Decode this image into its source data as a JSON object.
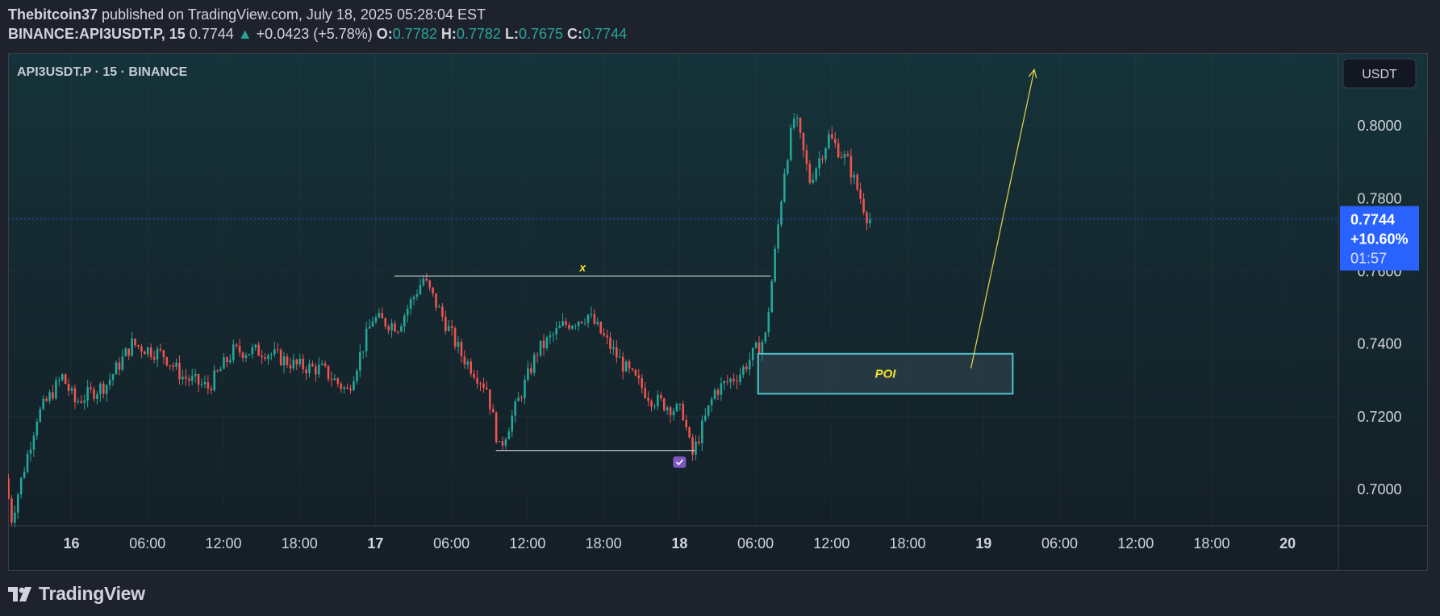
{
  "header": {
    "author": "Thebitcoin37",
    "published": "published on TradingView.com, July 18, 2025 05:28:04 EST",
    "symbol": "BINANCE:API3USDT.P, 15",
    "last": "0.7744",
    "change_arrow": "▲",
    "change": "+0.0423 (+5.78%)",
    "o_label": "O:",
    "o": "0.7782",
    "h_label": "H:",
    "h": "0.7782",
    "l_label": "L:",
    "l": "0.7675",
    "c_label": "C:",
    "c": "0.7744"
  },
  "footer": {
    "brand": "TradingView",
    "logo_icon": "tradingview-logo-icon"
  },
  "colors": {
    "up": "#26a69a",
    "down": "#ef5350",
    "price_badge": "#2962ff",
    "poi": "#4fc3c9",
    "annotation_text": "#f5e130",
    "arrow": "#e8d84a",
    "level_line": "#d1d4dc"
  },
  "chart_data": {
    "type": "candlestick",
    "legend": "API3USDT.P · 15 · BINANCE",
    "currency": "USDT",
    "ylim": [
      0.69,
      0.82
    ],
    "y_ticks": [
      "0.8000",
      "0.7800",
      "0.7600",
      "0.7400",
      "0.7200",
      "0.7000"
    ],
    "y_tick_values": [
      0.8,
      0.78,
      0.76,
      0.74,
      0.72,
      0.7
    ],
    "x_ticks": [
      "16",
      "06:00",
      "12:00",
      "18:00",
      "17",
      "06:00",
      "12:00",
      "18:00",
      "18",
      "06:00",
      "12:00",
      "18:00",
      "19",
      "06:00",
      "12:00",
      "18:00",
      "20"
    ],
    "x_tick_hours": [
      0,
      6,
      12,
      18,
      24,
      30,
      36,
      42,
      48,
      54,
      60,
      66,
      72,
      78,
      84,
      90,
      96
    ],
    "x_range_hours": [
      -5,
      100
    ],
    "last_bar_hour": 63.1,
    "price_badge": {
      "price": "0.7744",
      "value": 0.7744,
      "change": "+10.60%",
      "countdown": "01:57"
    },
    "key_points": [
      {
        "t": -5,
        "p": 0.703
      },
      {
        "t": -4.5,
        "p": 0.692
      },
      {
        "t": -2.5,
        "p": 0.72
      },
      {
        "t": -0.5,
        "p": 0.731
      },
      {
        "t": 0.5,
        "p": 0.724
      },
      {
        "t": 3,
        "p": 0.729
      },
      {
        "t": 5,
        "p": 0.74
      },
      {
        "t": 7.5,
        "p": 0.737
      },
      {
        "t": 9,
        "p": 0.731
      },
      {
        "t": 11,
        "p": 0.728
      },
      {
        "t": 13,
        "p": 0.738
      },
      {
        "t": 15.5,
        "p": 0.738
      },
      {
        "t": 18,
        "p": 0.734
      },
      {
        "t": 20,
        "p": 0.733
      },
      {
        "t": 22,
        "p": 0.727
      },
      {
        "t": 24,
        "p": 0.747
      },
      {
        "t": 26,
        "p": 0.745
      },
      {
        "t": 28,
        "p": 0.758
      },
      {
        "t": 31,
        "p": 0.737
      },
      {
        "t": 33,
        "p": 0.728
      },
      {
        "t": 34,
        "p": 0.711
      },
      {
        "t": 37,
        "p": 0.738
      },
      {
        "t": 39,
        "p": 0.745
      },
      {
        "t": 41,
        "p": 0.748
      },
      {
        "t": 44,
        "p": 0.733
      },
      {
        "t": 46,
        "p": 0.725
      },
      {
        "t": 48.5,
        "p": 0.721
      },
      {
        "t": 49.2,
        "p": 0.709
      },
      {
        "t": 51,
        "p": 0.727
      },
      {
        "t": 53,
        "p": 0.732
      },
      {
        "t": 55,
        "p": 0.742
      },
      {
        "t": 56.5,
        "p": 0.788
      },
      {
        "t": 57.3,
        "p": 0.803
      },
      {
        "t": 58.5,
        "p": 0.785
      },
      {
        "t": 60,
        "p": 0.797
      },
      {
        "t": 61.5,
        "p": 0.79
      },
      {
        "t": 63.1,
        "p": 0.7744
      }
    ],
    "annotations": {
      "level_x": {
        "label": "x",
        "price": 0.7587,
        "t_start": 25.5,
        "t_end": 55.2
      },
      "level_low": {
        "price": 0.7107,
        "t_start": 33.5,
        "t_end": 49.2
      },
      "poi_box": {
        "label": "POI",
        "p_top": 0.7373,
        "p_bottom": 0.7263,
        "t_start": 54.2,
        "t_end": 74.3
      },
      "arrow": {
        "t_start": 71,
        "p_start": 0.7333,
        "t_end": 76,
        "p_end": 0.8155
      },
      "marker": {
        "t": 48,
        "p": 0.7075,
        "icon": "checkmark-badge-icon"
      }
    }
  }
}
